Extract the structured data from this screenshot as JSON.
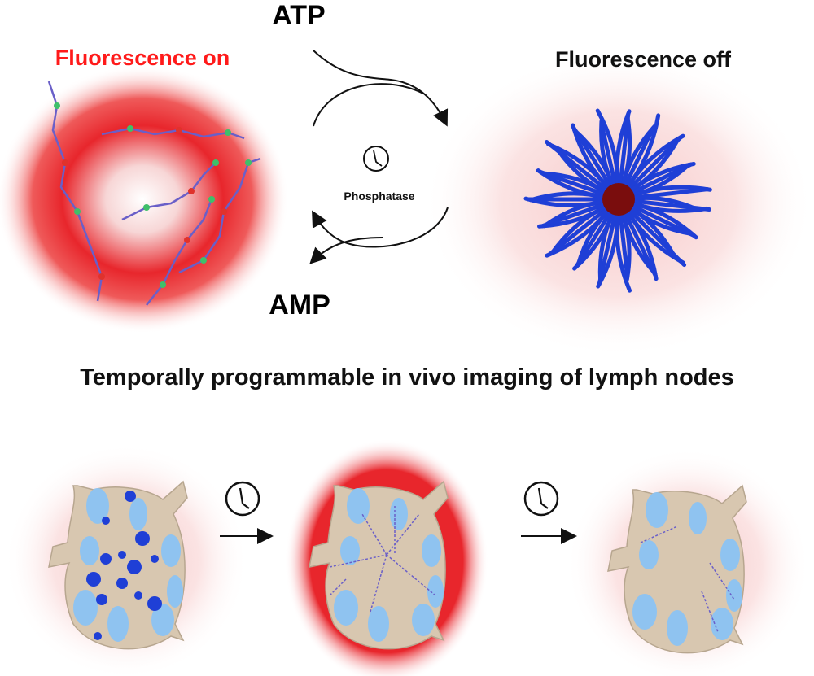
{
  "labels": {
    "atp": "ATP",
    "amp": "AMP",
    "fluorescence_on": "Fluorescence on",
    "fluorescence_off": "Fluorescence off",
    "enzyme": "Phosphatase",
    "heading": "Temporally programmable in vivo imaging of lymph nodes"
  },
  "colors": {
    "fluorescence_on": "#ff1a1a",
    "glow": "#e8262c",
    "micelle": "#1f3fd6",
    "micelle_core": "#7a0d0d",
    "lymph_node": "#d8c7b0",
    "follicle": "#8fc3f0",
    "polymer": "#6a5fc8",
    "bead_green": "#3fbf6a",
    "bead_red": "#e0322c"
  },
  "icons": [
    "clock-icon",
    "arrow-right-icon",
    "curved-arrow-icon"
  ]
}
